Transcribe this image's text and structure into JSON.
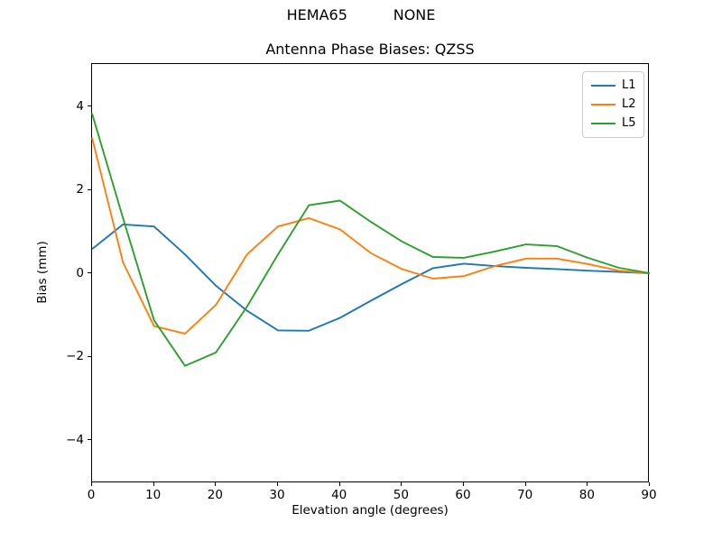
{
  "figure": {
    "suptitle": "HEMA65          NONE",
    "title": "Antenna Phase Biases: QZSS",
    "xlabel": "Elevation angle (degrees)",
    "ylabel": "Bias (mm)"
  },
  "chart_data": {
    "type": "line",
    "title": "Antenna Phase Biases: QZSS",
    "suptitle": "HEMA65          NONE",
    "xlabel": "Elevation angle (degrees)",
    "ylabel": "Bias (mm)",
    "xlim": [
      0,
      90
    ],
    "ylim": [
      -5,
      5
    ],
    "x_ticks": [
      0,
      10,
      20,
      30,
      40,
      50,
      60,
      70,
      80,
      90
    ],
    "y_ticks": [
      -4,
      -2,
      0,
      2,
      4
    ],
    "grid": false,
    "legend_position": "upper right",
    "x": [
      0,
      5,
      10,
      15,
      20,
      25,
      30,
      35,
      40,
      45,
      50,
      55,
      60,
      65,
      70,
      75,
      80,
      85,
      90
    ],
    "series": [
      {
        "name": "L1",
        "color": "#1f77b4",
        "values": [
          0.58,
          1.17,
          1.12,
          0.45,
          -0.3,
          -0.9,
          -1.37,
          -1.38,
          -1.07,
          -0.66,
          -0.26,
          0.12,
          0.23,
          0.17,
          0.13,
          0.1,
          0.06,
          0.03,
          0.0
        ]
      },
      {
        "name": "L2",
        "color": "#ff7f0e",
        "values": [
          3.25,
          0.26,
          -1.27,
          -1.45,
          -0.76,
          0.45,
          1.12,
          1.32,
          1.05,
          0.48,
          0.1,
          -0.13,
          -0.07,
          0.17,
          0.35,
          0.35,
          0.22,
          0.06,
          0.0
        ]
      },
      {
        "name": "L5",
        "color": "#2ca02c",
        "values": [
          3.83,
          1.32,
          -1.13,
          -2.22,
          -1.9,
          -0.8,
          0.45,
          1.63,
          1.74,
          1.23,
          0.76,
          0.39,
          0.37,
          0.52,
          0.69,
          0.65,
          0.37,
          0.13,
          0.0
        ]
      }
    ]
  }
}
